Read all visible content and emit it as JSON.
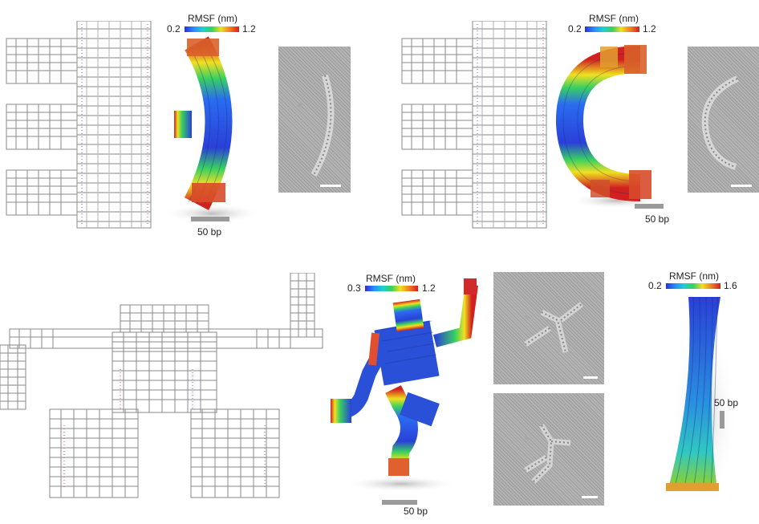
{
  "panels": [
    {
      "id": "top-left",
      "colorbar": {
        "title": "RMSF (nm)",
        "min": "0.2",
        "max": "1.2"
      },
      "scale_label": "50 bp"
    },
    {
      "id": "top-right",
      "colorbar": {
        "title": "RMSF (nm)",
        "min": "0.2",
        "max": "1.2"
      },
      "scale_label": "50 bp"
    },
    {
      "id": "bottom-middle",
      "colorbar": {
        "title": "RMSF (nm)",
        "min": "0.3",
        "max": "1.2"
      },
      "scale_label": "50 bp"
    },
    {
      "id": "bottom-right",
      "colorbar": {
        "title": "RMSF (nm)",
        "min": "0.2",
        "max": "1.6"
      },
      "scale_label": "50 bp"
    }
  ],
  "colors": {
    "rmsf_low": "#2a2fd0",
    "rmsf_mid": "#38d060",
    "rmsf_high": "#d02020",
    "schematic_stroke": "#8a8a8a"
  }
}
